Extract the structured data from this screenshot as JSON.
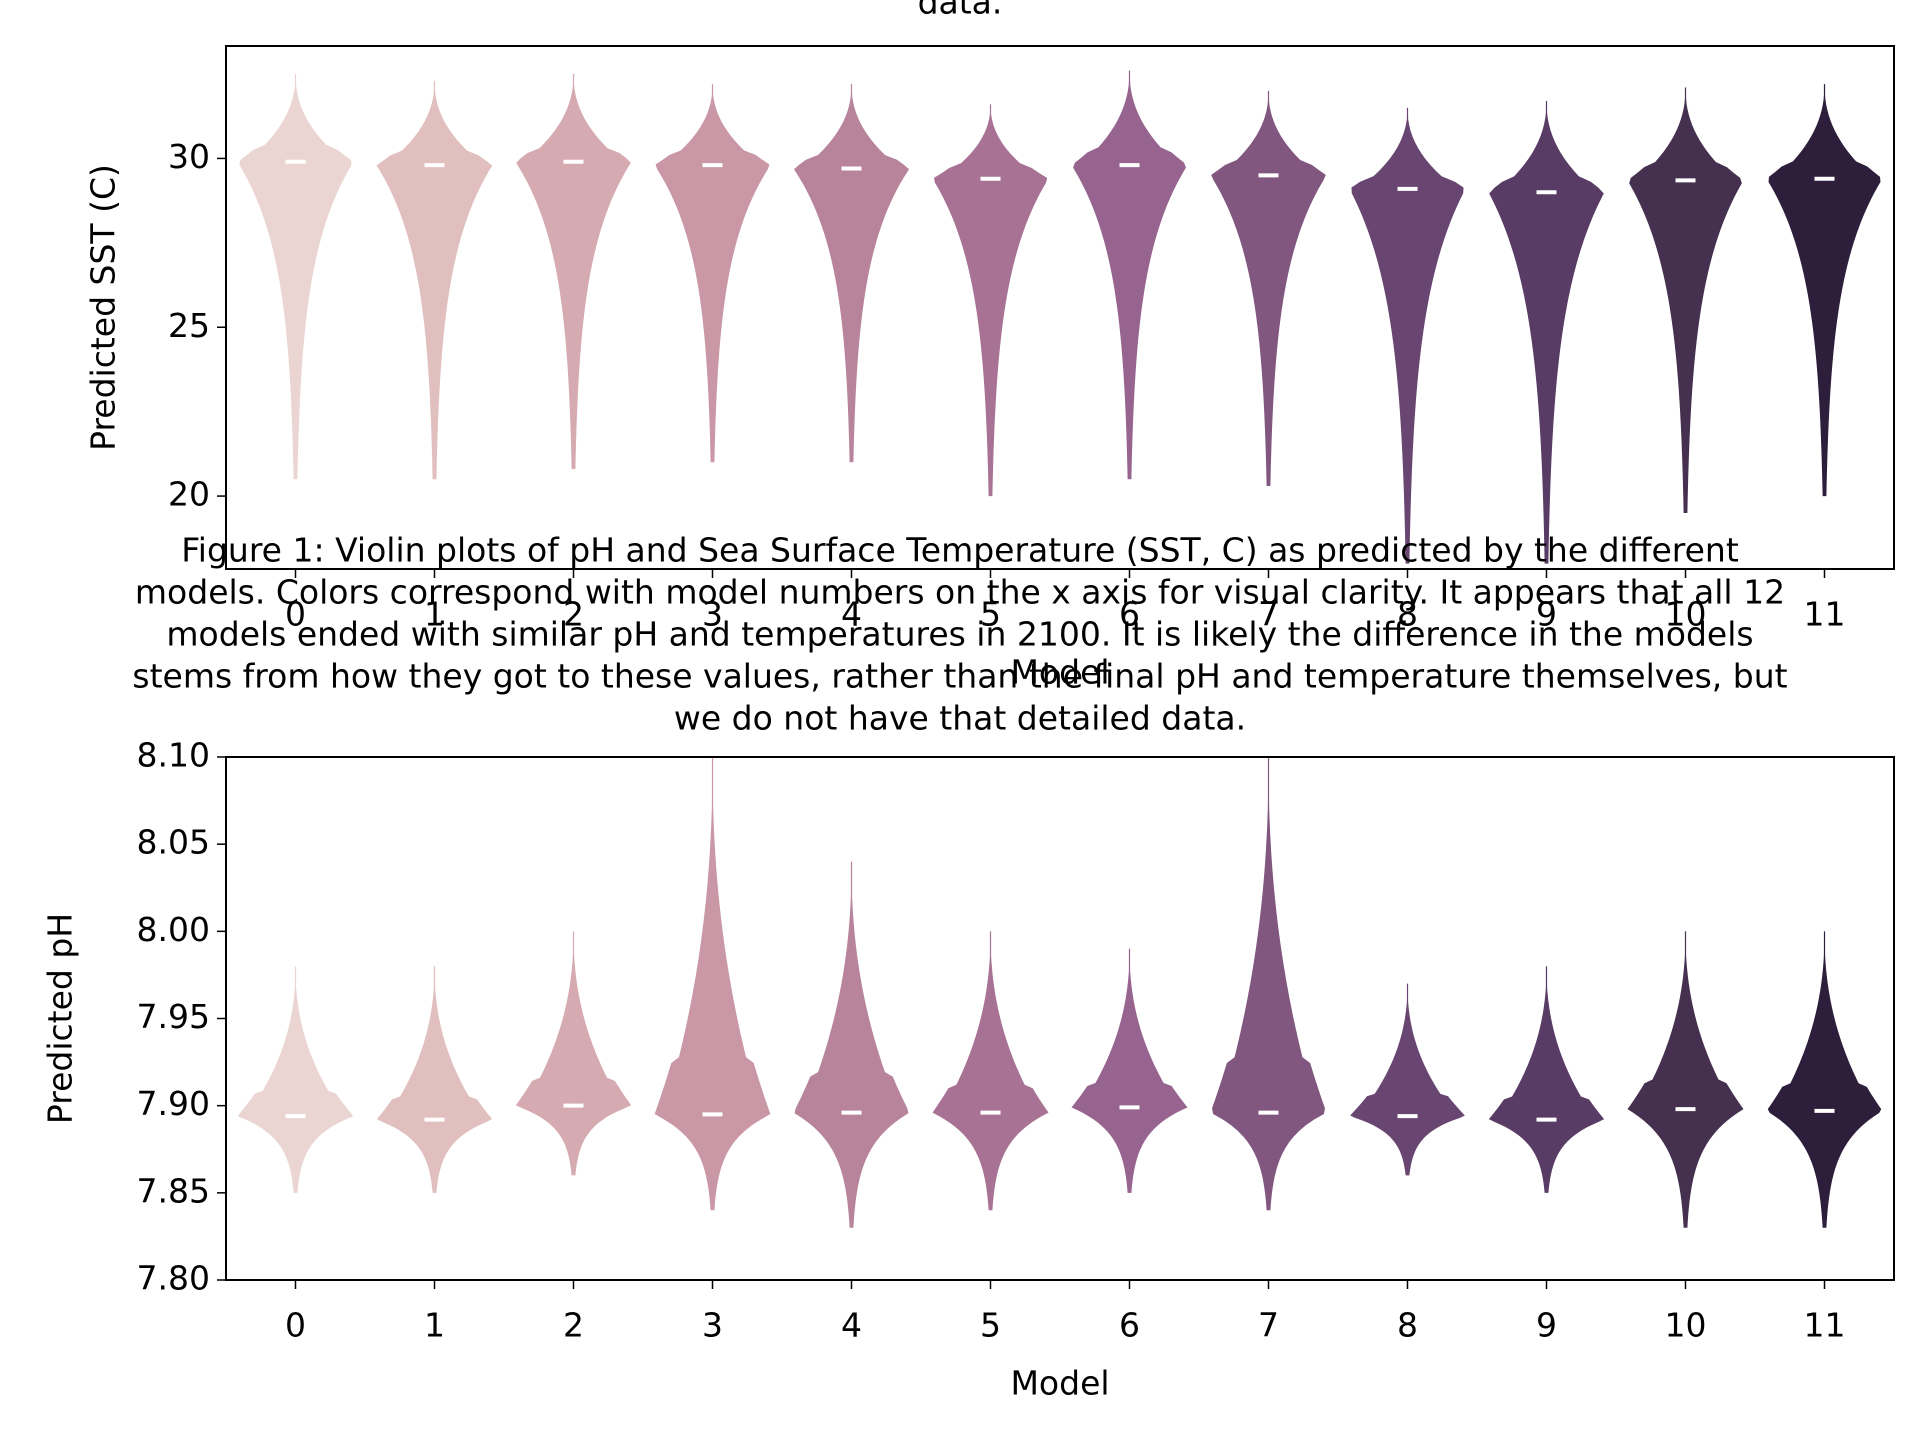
{
  "top_fragment": "data.",
  "caption": [
    "Figure 1: Violin plots of pH and Sea Surface Temperature (SST, C) as predicted by the different",
    "models. Colors correspond with model numbers on the x axis for visual clarity. It appears that all 12",
    "models ended with similar pH and temperatures in 2100. It is likely the difference in the models",
    "stems from how they got to these values, rather than the final pH and temperature themselves, but",
    "we do not have that detailed data."
  ],
  "chart_data": [
    {
      "type": "violin",
      "xlabel": "Model",
      "ylabel": "Predicted SST (C)",
      "categories": [
        "0",
        "1",
        "2",
        "3",
        "4",
        "5",
        "6",
        "7",
        "8",
        "9",
        "10",
        "11"
      ],
      "colors": [
        "#ead5d2",
        "#e0bfbe",
        "#d5aab0",
        "#c997a6",
        "#b8849c",
        "#a77293",
        "#96648f",
        "#815780",
        "#694671",
        "#593c66",
        "#45304f",
        "#2d1f3c"
      ],
      "medians": [
        29.9,
        29.8,
        29.9,
        29.8,
        29.7,
        29.4,
        29.8,
        29.5,
        29.1,
        29.0,
        29.35,
        29.4
      ],
      "max": [
        32.5,
        32.3,
        32.5,
        32.2,
        32.2,
        31.6,
        32.6,
        32.0,
        31.5,
        31.7,
        32.1,
        32.2
      ],
      "min": [
        20.5,
        20.5,
        20.8,
        21.0,
        21.0,
        20.0,
        20.5,
        20.3,
        18.0,
        18.0,
        19.5,
        20.0
      ],
      "ylim": [
        17.84,
        33.33
      ],
      "yticks": [
        20,
        25,
        30
      ]
    },
    {
      "type": "violin",
      "xlabel": "Model",
      "ylabel": "Predicted pH",
      "categories": [
        "0",
        "1",
        "2",
        "3",
        "4",
        "5",
        "6",
        "7",
        "8",
        "9",
        "10",
        "11"
      ],
      "colors": [
        "#ead5d2",
        "#e0bfbe",
        "#d5aab0",
        "#c997a6",
        "#b8849c",
        "#a77293",
        "#96648f",
        "#815780",
        "#694671",
        "#593c66",
        "#45304f",
        "#2d1f3c"
      ],
      "medians": [
        7.894,
        7.892,
        7.9,
        7.895,
        7.896,
        7.896,
        7.899,
        7.896,
        7.894,
        7.892,
        7.898,
        7.897
      ],
      "max": [
        7.98,
        7.98,
        8.0,
        8.1,
        8.04,
        8.0,
        7.99,
        8.1,
        7.97,
        7.98,
        8.0,
        8.0
      ],
      "min": [
        7.85,
        7.85,
        7.86,
        7.84,
        7.83,
        7.84,
        7.85,
        7.84,
        7.86,
        7.85,
        7.83,
        7.83
      ],
      "ylim": [
        7.8,
        8.1
      ],
      "yticks": [
        {
          "value": 7.8,
          "label": "7.80"
        },
        7.85,
        {
          "value": 7.9,
          "label": "7.90"
        },
        7.95,
        {
          "value": 8.0,
          "label": "8.00"
        },
        8.05,
        {
          "value": 8.1,
          "label": "8.10"
        }
      ]
    }
  ]
}
